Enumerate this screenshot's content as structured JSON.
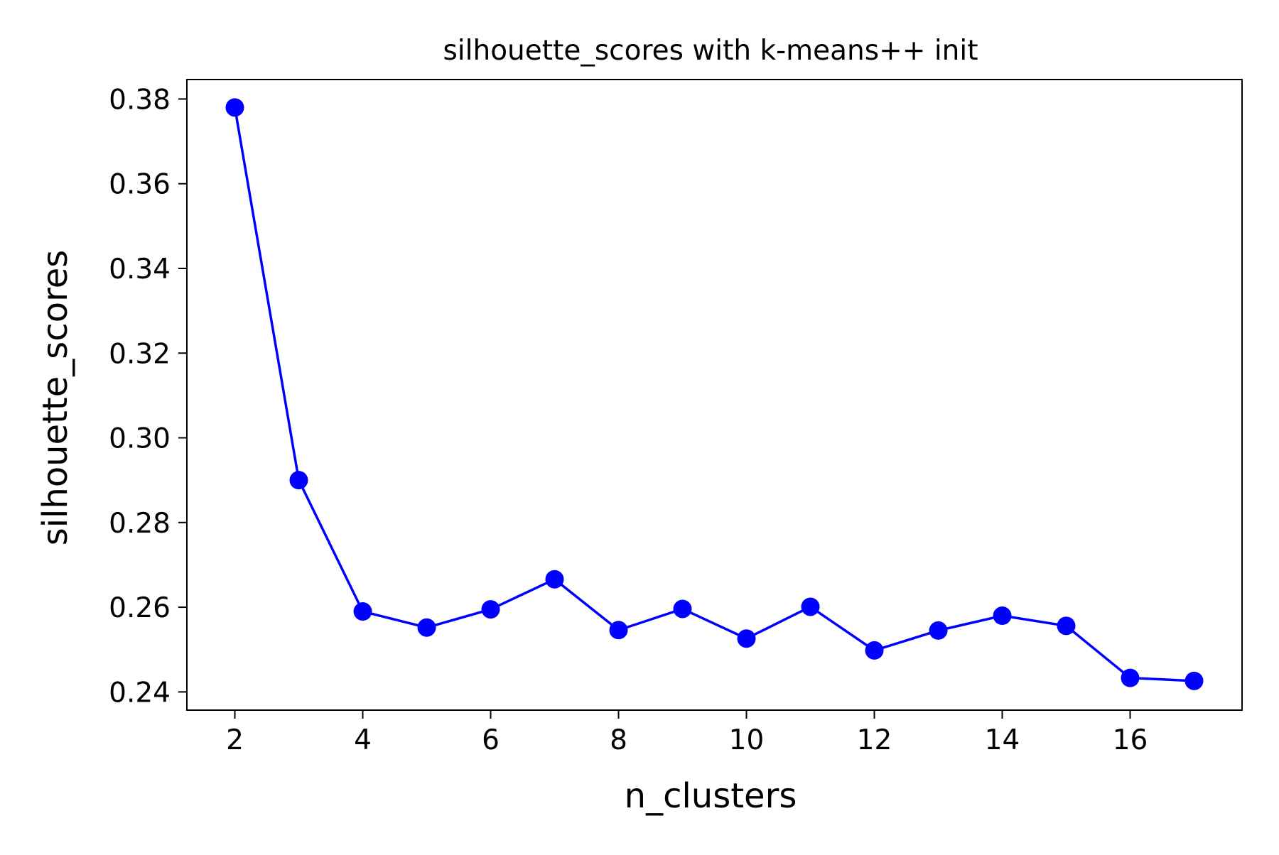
{
  "chart_data": {
    "type": "line",
    "title": "silhouette_scores with k-means++ init",
    "xlabel": "n_clusters",
    "ylabel": "silhouette_scores",
    "xlim": [
      1.25,
      17.75
    ],
    "ylim": [
      0.2357,
      0.3846
    ],
    "xticks": [
      2,
      4,
      6,
      8,
      10,
      12,
      14,
      16
    ],
    "xtick_labels": [
      "2",
      "4",
      "6",
      "8",
      "10",
      "12",
      "14",
      "16"
    ],
    "yticks": [
      0.24,
      0.26,
      0.28,
      0.3,
      0.32,
      0.34,
      0.36,
      0.38
    ],
    "ytick_labels": [
      "0.24",
      "0.26",
      "0.28",
      "0.30",
      "0.32",
      "0.34",
      "0.36",
      "0.38"
    ],
    "grid": false,
    "legend": "none",
    "series": [
      {
        "color": "#0000ff",
        "marker": "circle",
        "x": [
          2,
          3,
          4,
          5,
          6,
          7,
          8,
          9,
          10,
          11,
          12,
          13,
          14,
          15,
          16,
          17
        ],
        "y": [
          0.378,
          0.29,
          0.259,
          0.2552,
          0.2595,
          0.2666,
          0.2546,
          0.2596,
          0.2526,
          0.2601,
          0.2498,
          0.2545,
          0.258,
          0.2556,
          0.2433,
          0.2426
        ]
      }
    ]
  }
}
